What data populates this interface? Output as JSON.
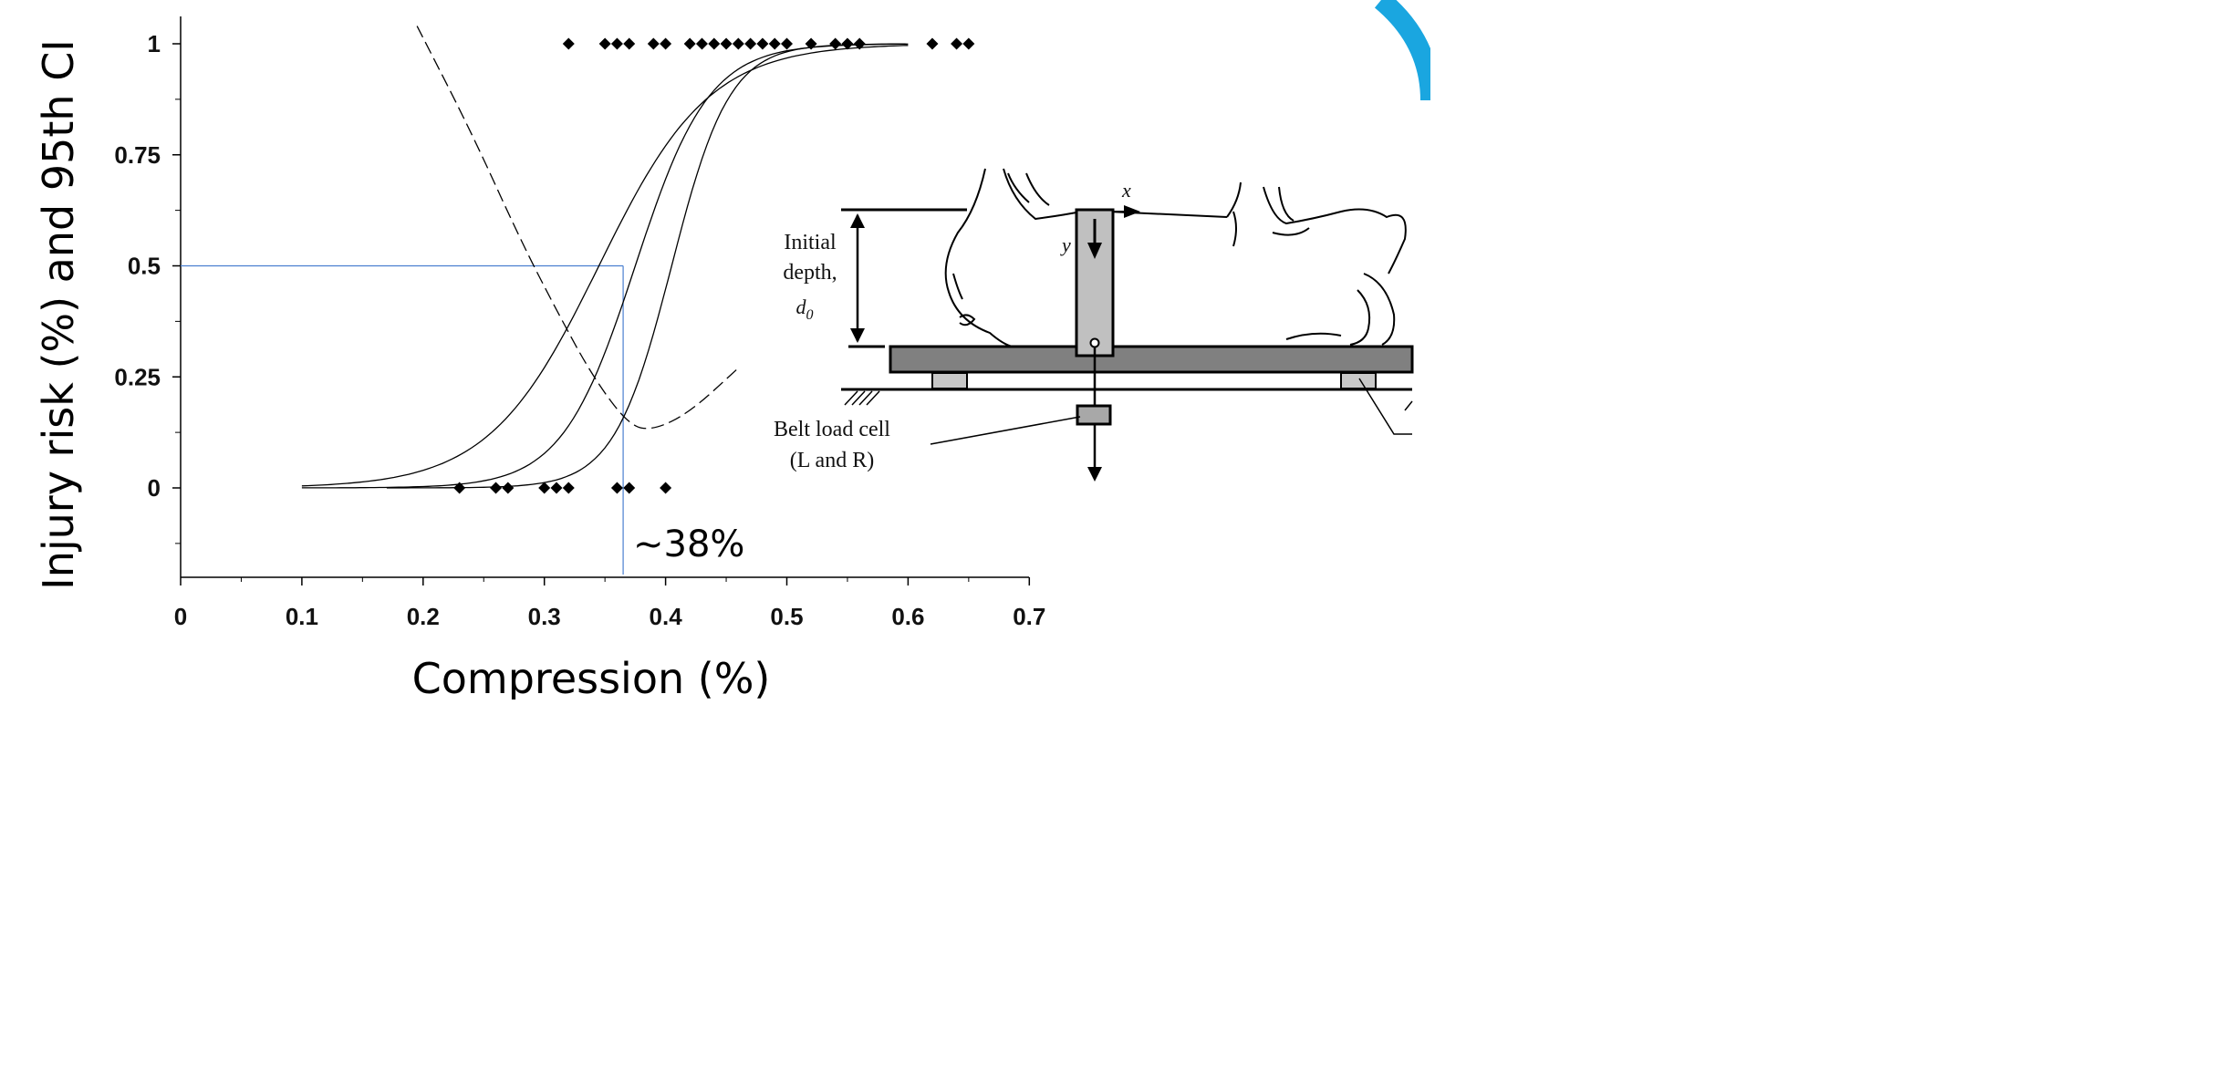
{
  "chart_data": {
    "type": "scatter",
    "xlabel": "Compression (%)",
    "ylabel": "Injury risk (%) and 95th CI",
    "xlim": [
      0,
      0.7
    ],
    "ylim": [
      -0.2,
      1.05
    ],
    "x_ticks": [
      "0",
      "0.1",
      "0.2",
      "0.3",
      "0.4",
      "0.5",
      "0.6",
      "0.7"
    ],
    "y_ticks": [
      "1",
      "0.75",
      "0.5",
      "0.25",
      "0"
    ],
    "observations_injured": [
      0.32,
      0.35,
      0.36,
      0.37,
      0.39,
      0.4,
      0.42,
      0.43,
      0.44,
      0.45,
      0.46,
      0.47,
      0.48,
      0.49,
      0.5,
      0.52,
      0.54,
      0.55,
      0.56,
      0.62,
      0.64,
      0.65
    ],
    "observations_uninjured": [
      0.23,
      0.26,
      0.27,
      0.3,
      0.31,
      0.32,
      0.36,
      0.37,
      0.4
    ],
    "risk_curve": {
      "x50": 0.375,
      "slope": 33,
      "x_range": [
        0.1,
        0.6
      ]
    },
    "ci_upper_curve": {
      "x50": 0.345,
      "slope": 22,
      "x_range": [
        0.1,
        0.6
      ]
    },
    "ci_lower_curve": {
      "x50": 0.405,
      "slope": 42,
      "x_range": [
        0.17,
        0.6
      ]
    },
    "ci_width_curve": [
      [
        0.195,
        1.04
      ],
      [
        0.24,
        0.8
      ],
      [
        0.28,
        0.56
      ],
      [
        0.31,
        0.4
      ],
      [
        0.34,
        0.25
      ],
      [
        0.37,
        0.14
      ],
      [
        0.39,
        0.13
      ],
      [
        0.42,
        0.17
      ],
      [
        0.46,
        0.27
      ]
    ],
    "reference": {
      "x": 0.365,
      "y": 0.5,
      "color": "#4a7fd0"
    },
    "annotation": "~38%"
  },
  "diagram": {
    "labels": {
      "initial": "Initial",
      "depth": "depth,",
      "d0": "d",
      "d0_sub": "0",
      "x": "x",
      "y": "y",
      "belt_line1": "Belt load cell",
      "belt_line2": "(L and R)"
    }
  },
  "colors": {
    "corner_accent": "#1aa6e0"
  }
}
